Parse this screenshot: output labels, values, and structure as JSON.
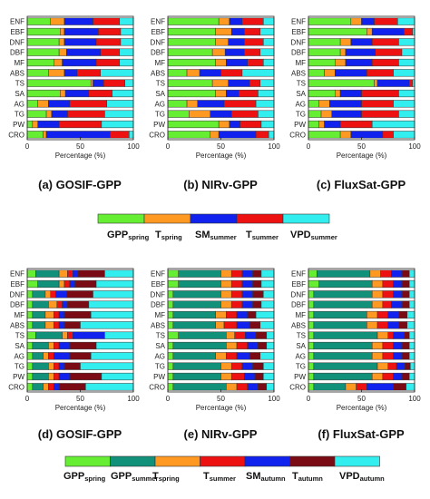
{
  "chart_data": [
    {
      "type": "bar",
      "orientation": "horizontal-stacked",
      "caption": "(a) GOSIF-GPP",
      "xlabel": "Percentage (%)",
      "xlim": [
        0,
        100
      ],
      "xticks": [
        "0",
        "50",
        "100"
      ],
      "categories": [
        "ENF",
        "EBF",
        "DNF",
        "DBF",
        "MF",
        "ABS",
        "TS",
        "SA",
        "AG",
        "TG",
        "PW",
        "CRO"
      ],
      "series": [
        {
          "name": "GPP_spring",
          "values": [
            22,
            31,
            30,
            30,
            25,
            20,
            60,
            31,
            10,
            18,
            5,
            15
          ]
        },
        {
          "name": "T_spring",
          "values": [
            13,
            4,
            5,
            7,
            8,
            15,
            2,
            5,
            10,
            5,
            5,
            3
          ]
        },
        {
          "name": "SM_summer",
          "values": [
            27,
            32,
            30,
            32,
            32,
            12,
            10,
            22,
            20,
            15,
            20,
            60
          ]
        },
        {
          "name": "T_summer",
          "values": [
            25,
            21,
            23,
            18,
            22,
            22,
            20,
            22,
            35,
            35,
            40,
            18
          ]
        },
        {
          "name": "VPD_summer",
          "values": [
            13,
            12,
            12,
            13,
            13,
            31,
            8,
            20,
            25,
            27,
            30,
            4
          ]
        }
      ]
    },
    {
      "type": "bar",
      "orientation": "horizontal-stacked",
      "caption": "(b) NIRv-GPP",
      "xlabel": "Percentage (%)",
      "xlim": [
        0,
        100
      ],
      "xticks": [
        "0",
        "50",
        "100"
      ],
      "categories": [
        "ENF",
        "EBF",
        "DNF",
        "DBF",
        "MF",
        "ABS",
        "TS",
        "SA",
        "AG",
        "TG",
        "PW",
        "CRO"
      ],
      "series": [
        {
          "name": "GPP_spring",
          "values": [
            48,
            45,
            45,
            42,
            45,
            18,
            42,
            45,
            18,
            20,
            48,
            40
          ]
        },
        {
          "name": "T_spring",
          "values": [
            10,
            15,
            12,
            12,
            10,
            12,
            15,
            10,
            10,
            20,
            10,
            8
          ]
        },
        {
          "name": "SM_summer",
          "values": [
            12,
            12,
            15,
            18,
            20,
            20,
            20,
            12,
            25,
            20,
            10,
            35
          ]
        },
        {
          "name": "T_summer",
          "values": [
            20,
            15,
            18,
            15,
            15,
            20,
            10,
            18,
            30,
            25,
            20,
            12
          ]
        },
        {
          "name": "VPD_summer",
          "values": [
            10,
            13,
            10,
            13,
            10,
            30,
            13,
            15,
            17,
            15,
            12,
            5
          ]
        }
      ]
    },
    {
      "type": "bar",
      "orientation": "horizontal-stacked",
      "caption": "(c) FluxSat-GPP",
      "xlabel": "Percentage (%)",
      "xlim": [
        0,
        100
      ],
      "xticks": [
        "0",
        "50",
        "100"
      ],
      "categories": [
        "ENF",
        "EBF",
        "DNF",
        "DBF",
        "MF",
        "ABS",
        "TS",
        "SA",
        "AG",
        "TG",
        "PW",
        "CRO"
      ],
      "series": [
        {
          "name": "GPP_spring",
          "values": [
            40,
            55,
            30,
            30,
            25,
            15,
            62,
            25,
            10,
            12,
            10,
            30
          ]
        },
        {
          "name": "T_spring",
          "values": [
            10,
            5,
            10,
            5,
            10,
            10,
            3,
            5,
            10,
            10,
            5,
            10
          ]
        },
        {
          "name": "SM_summer",
          "values": [
            12,
            30,
            20,
            28,
            25,
            30,
            30,
            20,
            30,
            28,
            15,
            30
          ]
        },
        {
          "name": "T_summer",
          "values": [
            22,
            8,
            25,
            25,
            25,
            25,
            3,
            35,
            30,
            35,
            30,
            10
          ]
        },
        {
          "name": "VPD_summer",
          "values": [
            16,
            2,
            15,
            12,
            15,
            20,
            2,
            15,
            20,
            15,
            40,
            20
          ]
        }
      ]
    },
    {
      "type": "bar",
      "orientation": "horizontal-stacked",
      "caption": "(d) GOSIF-GPP",
      "xlabel": "Percentage (%)",
      "xlim": [
        0,
        100
      ],
      "xticks": [
        "0",
        "50",
        "100"
      ],
      "categories": [
        "ENF",
        "EBF",
        "DNF",
        "DBF",
        "MF",
        "ABS",
        "TS",
        "SA",
        "AG",
        "TG",
        "PW",
        "CRO"
      ],
      "series": [
        {
          "name": "GPP_spring",
          "values": [
            8,
            10,
            5,
            5,
            5,
            5,
            8,
            5,
            5,
            5,
            5,
            5
          ]
        },
        {
          "name": "GPP_summer",
          "values": [
            22,
            20,
            12,
            15,
            12,
            12,
            25,
            15,
            10,
            15,
            15,
            10
          ]
        },
        {
          "name": "T_spring",
          "values": [
            8,
            5,
            5,
            8,
            8,
            8,
            5,
            5,
            5,
            5,
            5,
            5
          ]
        },
        {
          "name": "T_summer",
          "values": [
            5,
            5,
            5,
            5,
            5,
            5,
            5,
            5,
            5,
            5,
            5,
            5
          ]
        },
        {
          "name": "SM_autumn",
          "values": [
            5,
            5,
            10,
            5,
            5,
            5,
            30,
            10,
            15,
            5,
            10,
            5
          ]
        },
        {
          "name": "T_autumn",
          "values": [
            25,
            20,
            25,
            20,
            25,
            15,
            0,
            25,
            20,
            15,
            30,
            25
          ]
        },
        {
          "name": "VPD_autumn",
          "values": [
            27,
            35,
            38,
            42,
            40,
            50,
            27,
            35,
            40,
            50,
            30,
            45
          ]
        }
      ]
    },
    {
      "type": "bar",
      "orientation": "horizontal-stacked",
      "caption": "(e) NIRv-GPP",
      "xlabel": "Percentage (%)",
      "xlim": [
        0,
        100
      ],
      "xticks": [
        "0",
        "50",
        "100"
      ],
      "categories": [
        "ENF",
        "EBF",
        "DNF",
        "DBF",
        "MF",
        "ABS",
        "TS",
        "SA",
        "AG",
        "TG",
        "PW",
        "CRO"
      ],
      "series": [
        {
          "name": "GPP_spring",
          "values": [
            10,
            10,
            5,
            5,
            5,
            5,
            10,
            5,
            5,
            5,
            5,
            5
          ]
        },
        {
          "name": "GPP_summer",
          "values": [
            40,
            40,
            45,
            45,
            40,
            40,
            45,
            50,
            40,
            45,
            45,
            50
          ]
        },
        {
          "name": "T_spring",
          "values": [
            10,
            10,
            10,
            10,
            10,
            8,
            8,
            10,
            10,
            10,
            10,
            10
          ]
        },
        {
          "name": "T_summer",
          "values": [
            10,
            10,
            10,
            10,
            10,
            12,
            10,
            10,
            10,
            10,
            12,
            10
          ]
        },
        {
          "name": "SM_autumn",
          "values": [
            10,
            10,
            10,
            10,
            10,
            12,
            10,
            10,
            12,
            10,
            10,
            10
          ]
        },
        {
          "name": "T_autumn",
          "values": [
            8,
            8,
            10,
            8,
            8,
            10,
            10,
            8,
            10,
            10,
            8,
            8
          ]
        },
        {
          "name": "VPD_autumn",
          "values": [
            12,
            12,
            10,
            12,
            17,
            13,
            7,
            7,
            13,
            10,
            10,
            7
          ]
        }
      ]
    },
    {
      "type": "bar",
      "orientation": "horizontal-stacked",
      "caption": "(f) FluxSat-GPP",
      "xlabel": "Percentage (%)",
      "xlim": [
        0,
        100
      ],
      "xticks": [
        "0",
        "50",
        "100"
      ],
      "categories": [
        "ENF",
        "EBF",
        "DNF",
        "DBF",
        "MF",
        "ABS",
        "TS",
        "SA",
        "AG",
        "TG",
        "PW",
        "CRO"
      ],
      "series": [
        {
          "name": "GPP_spring",
          "values": [
            8,
            10,
            5,
            5,
            5,
            5,
            5,
            5,
            5,
            5,
            5,
            5
          ]
        },
        {
          "name": "GPP_summer",
          "values": [
            50,
            50,
            55,
            55,
            50,
            50,
            60,
            55,
            55,
            60,
            55,
            30
          ]
        },
        {
          "name": "T_spring",
          "values": [
            10,
            10,
            10,
            10,
            10,
            10,
            10,
            10,
            10,
            10,
            10,
            10
          ]
        },
        {
          "name": "T_summer",
          "values": [
            10,
            10,
            10,
            8,
            10,
            10,
            5,
            10,
            10,
            8,
            10,
            10
          ]
        },
        {
          "name": "SM_autumn",
          "values": [
            10,
            8,
            8,
            10,
            10,
            10,
            10,
            8,
            8,
            8,
            8,
            25
          ]
        },
        {
          "name": "T_autumn",
          "values": [
            7,
            7,
            7,
            7,
            8,
            8,
            5,
            7,
            7,
            5,
            7,
            12
          ]
        },
        {
          "name": "VPD_autumn",
          "values": [
            5,
            5,
            5,
            5,
            7,
            7,
            5,
            5,
            5,
            4,
            5,
            8
          ]
        }
      ]
    }
  ],
  "legends": [
    {
      "items": [
        {
          "key": "GPP_spring",
          "main": "GPP",
          "sub": "spring",
          "color": "#66ee33"
        },
        {
          "key": "T_spring",
          "main": "T",
          "sub": "spring",
          "color": "#ff9922"
        },
        {
          "key": "SM_summer",
          "main": "SM",
          "sub": "summer",
          "color": "#1122ee"
        },
        {
          "key": "T_summer",
          "main": "T",
          "sub": "summer",
          "color": "#ee1111"
        },
        {
          "key": "VPD_summer",
          "main": "VPD",
          "sub": "summer",
          "color": "#33eeee"
        }
      ]
    },
    {
      "items": [
        {
          "key": "GPP_spring",
          "main": "GPP",
          "sub": "spring",
          "color": "#66ee33"
        },
        {
          "key": "GPP_summer",
          "main": "GPP",
          "sub": "summer",
          "color": "#11907a"
        },
        {
          "key": "T_spring",
          "main": "T",
          "sub": "spring",
          "color": "#ff9922"
        },
        {
          "key": "T_summer",
          "main": "T",
          "sub": "summer",
          "color": "#ee1111"
        },
        {
          "key": "SM_autumn",
          "main": "SM",
          "sub": "autumn",
          "color": "#1122ee"
        },
        {
          "key": "T_autumn",
          "main": "T",
          "sub": "autumn",
          "color": "#7a0a14"
        },
        {
          "key": "VPD_autumn",
          "main": "VPD",
          "sub": "autumn",
          "color": "#33eeee"
        }
      ]
    }
  ],
  "colors": {
    "GPP_spring": "#66ee33",
    "GPP_summer": "#11907a",
    "T_spring": "#ff9922",
    "T_summer": "#ee1111",
    "SM_summer": "#1122ee",
    "SM_autumn": "#1122ee",
    "T_autumn": "#7a0a14",
    "VPD_summer": "#33eeee",
    "VPD_autumn": "#33eeee"
  }
}
